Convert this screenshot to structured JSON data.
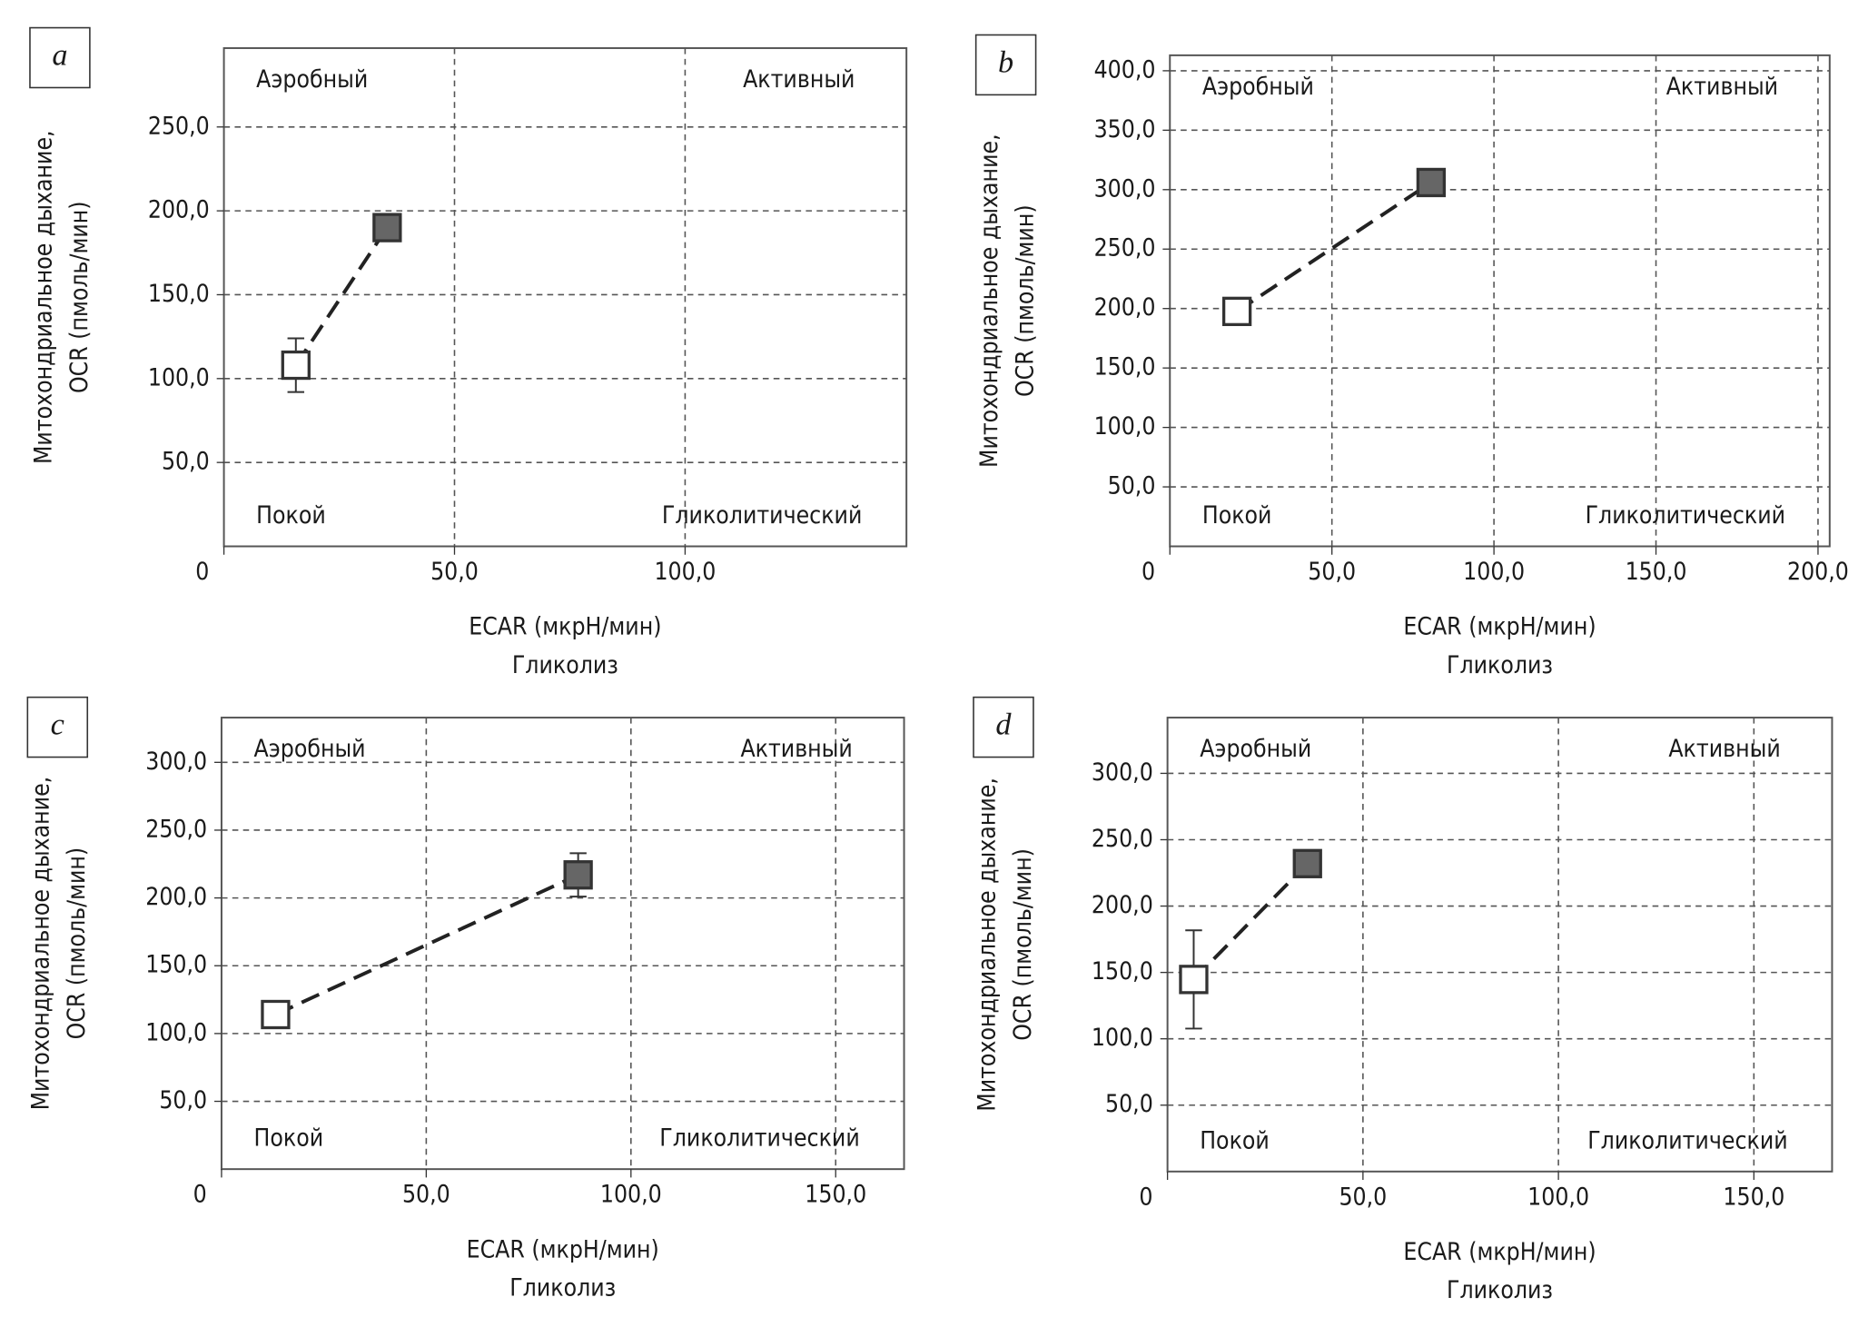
{
  "chart_data": [
    {
      "type": "scatter",
      "panel": "a",
      "ylabel": "Митохондриальное дыхание,",
      "ylabel2": "OCR (пмоль/мин)",
      "xlabel": "ECAR (мкрН/мин)",
      "xlabel2": "Гликолиз",
      "quadrants": [
        "Аэробный",
        "Активный",
        "Покой",
        "Гликолитический"
      ],
      "x": [
        15.6,
        35.4
      ],
      "values": [
        108,
        190
      ],
      "errors": [
        16,
        null
      ],
      "marker_colors": [
        "#ffffff",
        "#666666"
      ],
      "xlim": [
        0,
        148
      ],
      "ylim": [
        0,
        297
      ],
      "xticks": [
        0,
        {
          "value": 50,
          "label": "50,0"
        },
        {
          "value": 100,
          "label": "100,0"
        }
      ],
      "yticks": [
        {
          "value": 50,
          "label": "50,0"
        },
        {
          "value": 100,
          "label": "100,0"
        },
        {
          "value": 150,
          "label": "150,0"
        },
        {
          "value": 200,
          "label": "200,0"
        },
        {
          "value": 250,
          "label": "250,0"
        }
      ],
      "grid": true
    },
    {
      "type": "scatter",
      "panel": "b",
      "ylabel": "Митохондриальное дыхание,",
      "ylabel2": "OCR (пмоль/мин)",
      "xlabel": "ECAR (мкрН/мин)",
      "xlabel2": "Гликолиз",
      "quadrants": [
        "Аэробный",
        "Активный",
        "Покой",
        "Гликолитический"
      ],
      "x": [
        20.7,
        80.6
      ],
      "values": [
        197.6,
        306
      ],
      "marker_colors": [
        "#ffffff",
        "#666666"
      ],
      "xlim": [
        0,
        203.6
      ],
      "ylim": [
        0,
        413
      ],
      "xticks": [
        0,
        {
          "value": 50,
          "label": "50,0"
        },
        {
          "value": 100,
          "label": "100,0"
        },
        {
          "value": 150,
          "label": "150,0"
        },
        {
          "value": 200,
          "label": "200,0"
        }
      ],
      "yticks": [
        {
          "value": 50,
          "label": "50,0"
        },
        {
          "value": 100,
          "label": "100,0"
        },
        {
          "value": 150,
          "label": "150,0"
        },
        {
          "value": 200,
          "label": "200,0"
        },
        {
          "value": 250,
          "label": "250,0"
        },
        {
          "value": 300,
          "label": "300,0"
        },
        {
          "value": 350,
          "label": "350,0"
        },
        {
          "value": 400,
          "label": "400,0"
        }
      ],
      "grid": true
    },
    {
      "type": "scatter",
      "panel": "c",
      "ylabel": "Митохондриальное дыхание,",
      "ylabel2": "OCR (пмоль/мин)",
      "xlabel": "ECAR (мкрН/мин)",
      "xlabel2": "Гликолиз",
      "quadrants": [
        "Аэробный",
        "Активный",
        "Покой",
        "Гликолитический"
      ],
      "x": [
        13.2,
        87.1
      ],
      "values": [
        114,
        217
      ],
      "errors": [
        null,
        16
      ],
      "marker_colors": [
        "#ffffff",
        "#666666"
      ],
      "xlim": [
        0,
        166.7
      ],
      "ylim": [
        0,
        333
      ],
      "xticks": [
        0,
        {
          "value": 50,
          "label": "50,0"
        },
        {
          "value": 100,
          "label": "100,0"
        },
        {
          "value": 150,
          "label": "150,0"
        }
      ],
      "yticks": [
        {
          "value": 50,
          "label": "50,0"
        },
        {
          "value": 100,
          "label": "100,0"
        },
        {
          "value": 150,
          "label": "150,0"
        },
        {
          "value": 200,
          "label": "200,0"
        },
        {
          "value": 250,
          "label": "250,0"
        },
        {
          "value": 300,
          "label": "300,0"
        }
      ],
      "grid": true
    },
    {
      "type": "scatter",
      "panel": "d",
      "ylabel": "Митохондриальное дыхание,",
      "ylabel2": "OCR (пмоль/мин)",
      "xlabel": "ECAR (мкрН/мин)",
      "xlabel2": "Гликолиз",
      "quadrants": [
        "Аэробный",
        "Активный",
        "Покой",
        "Гликолитический"
      ],
      "x": [
        6.7,
        35.8
      ],
      "values": [
        144.7,
        232
      ],
      "errors": [
        37,
        null
      ],
      "marker_colors": [
        "#ffffff",
        "#666666"
      ],
      "xlim": [
        0,
        170
      ],
      "ylim": [
        0,
        342
      ],
      "xticks": [
        0,
        {
          "value": 50,
          "label": "50,0"
        },
        {
          "value": 100,
          "label": "100,0"
        },
        {
          "value": 150,
          "label": "150,0"
        }
      ],
      "yticks": [
        {
          "value": 50,
          "label": "50,0"
        },
        {
          "value": 100,
          "label": "100,0"
        },
        {
          "value": 150,
          "label": "150,0"
        },
        {
          "value": 200,
          "label": "200,0"
        },
        {
          "value": 250,
          "label": "250,0"
        },
        {
          "value": 300,
          "label": "300,0"
        }
      ],
      "grid": true
    }
  ]
}
